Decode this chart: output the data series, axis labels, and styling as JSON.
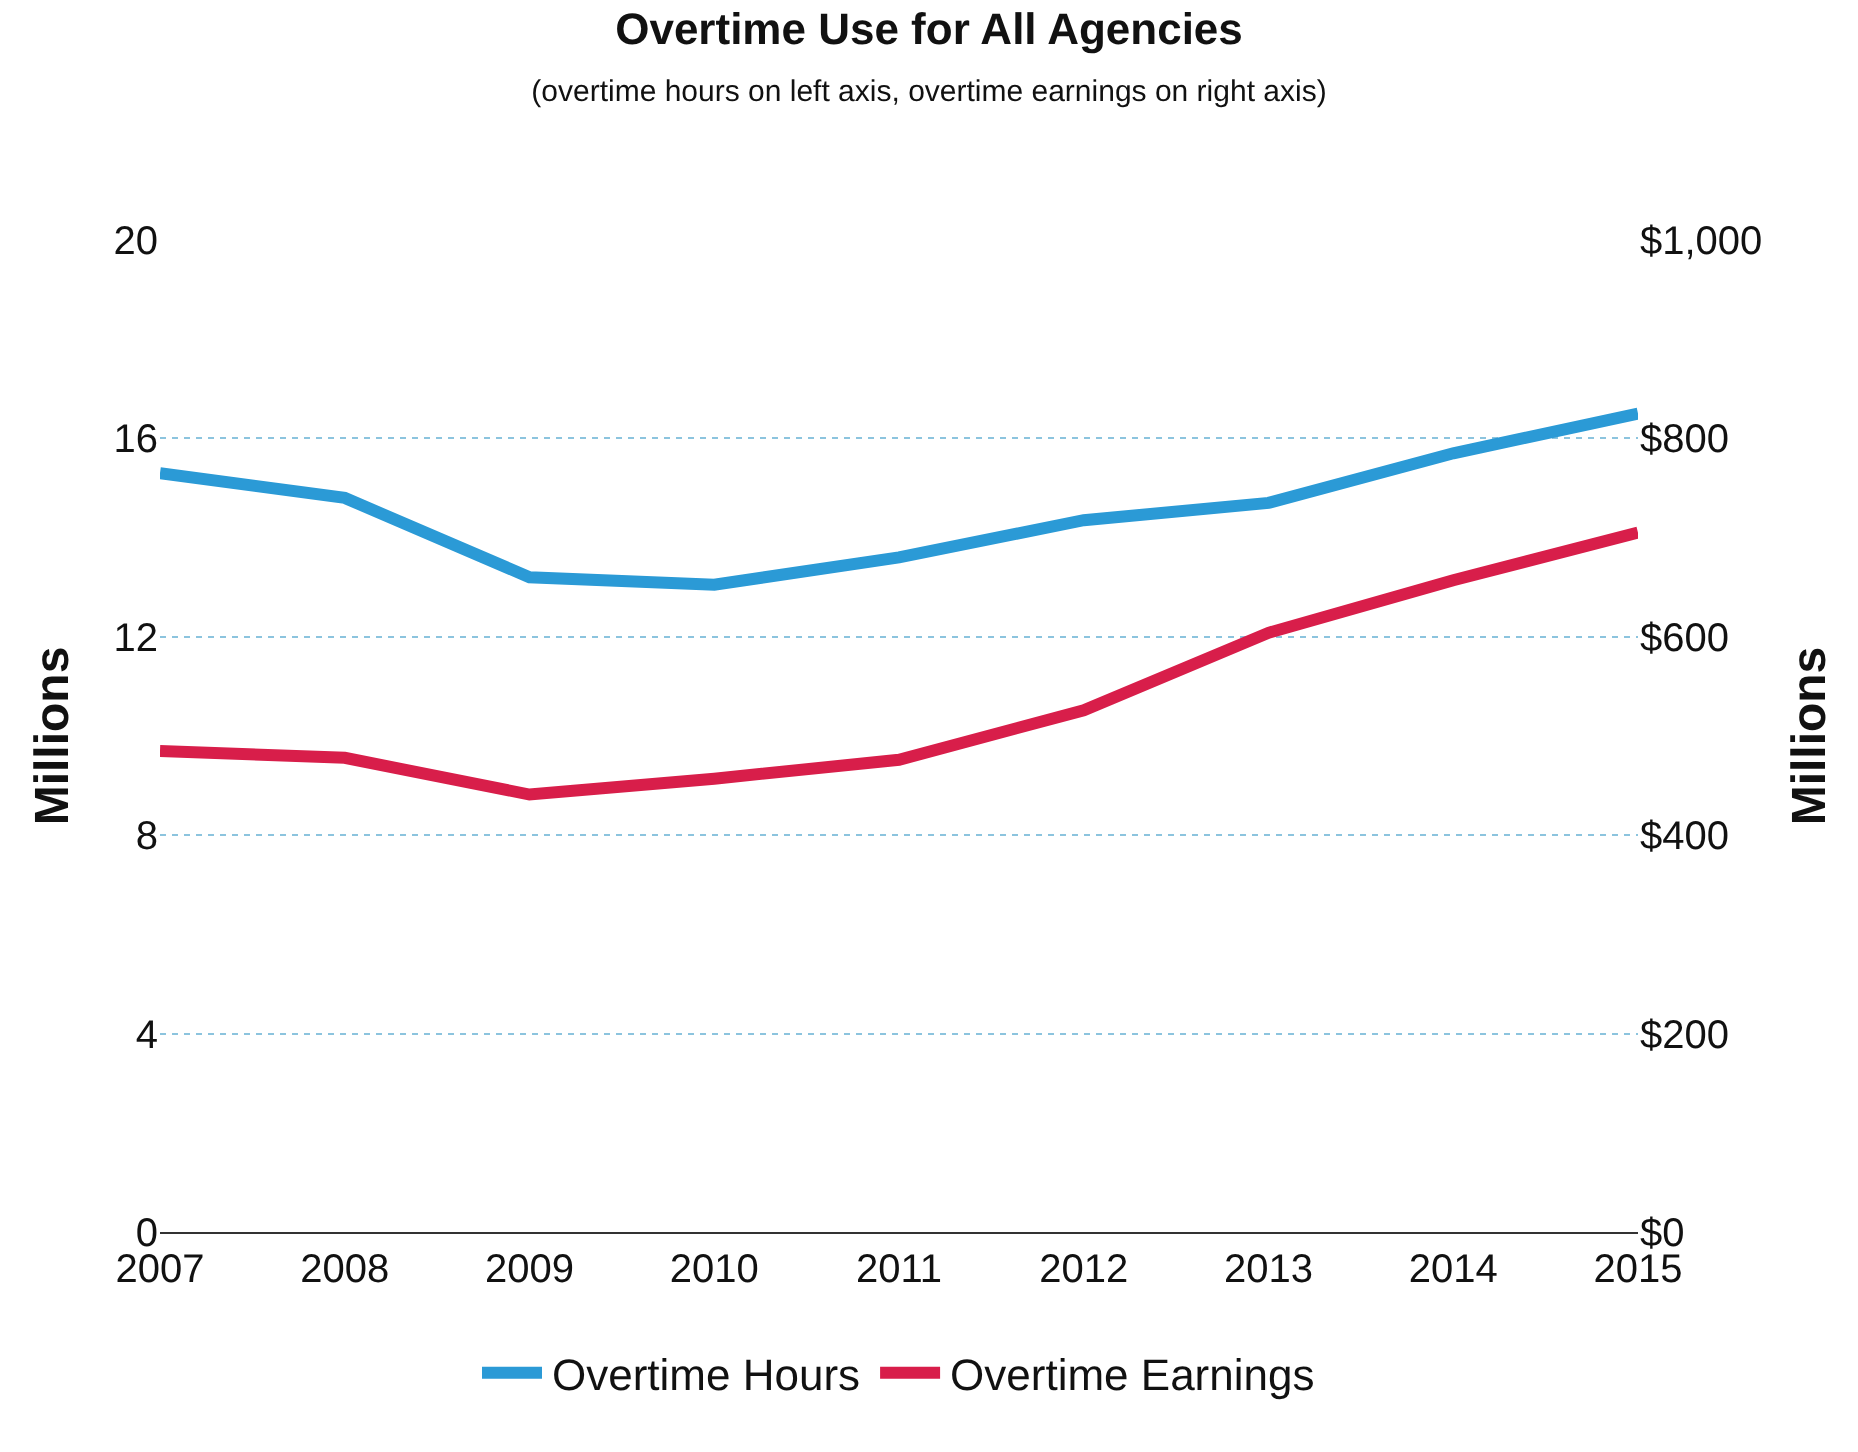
{
  "chart_data": {
    "type": "line",
    "title": "Overtime Use for All Agencies",
    "subtitle": "(overtime hours on left axis, overtime earnings on right axis)",
    "ylabel": "Millions",
    "y2label": "Millions",
    "x": [
      2007,
      2008,
      2009,
      2010,
      2011,
      2012,
      2013,
      2014,
      2015
    ],
    "xlim": [
      2007,
      2015
    ],
    "xticks": [
      2007,
      2008,
      2009,
      2010,
      2011,
      2012,
      2013,
      2014,
      2015
    ],
    "ylim": [
      0,
      20
    ],
    "yticks": [
      0,
      4,
      8,
      12,
      16,
      20
    ],
    "y2lim": [
      0,
      1000
    ],
    "y2ticks": [
      {
        "value": 0,
        "label": "$0"
      },
      {
        "value": 200,
        "label": "$200"
      },
      {
        "value": 400,
        "label": "$400"
      },
      {
        "value": 600,
        "label": "$600"
      },
      {
        "value": 800,
        "label": "$800"
      },
      {
        "value": 1000,
        "label": "$1,000"
      }
    ],
    "series": [
      {
        "name": "Overtime Hours",
        "color": "#2b9ad6",
        "values": [
          15.3,
          14.8,
          13.2,
          13.05,
          13.6,
          14.35,
          14.7,
          15.7,
          16.5
        ]
      },
      {
        "name": "Overtime Earnings",
        "color": "#d81e4a",
        "axis": "y2",
        "values": [
          485,
          478,
          441,
          457,
          476,
          526,
          604,
          657,
          705
        ]
      }
    ],
    "grid": "y",
    "legend": "bottom",
    "marker": "none",
    "line_style": "solid"
  }
}
